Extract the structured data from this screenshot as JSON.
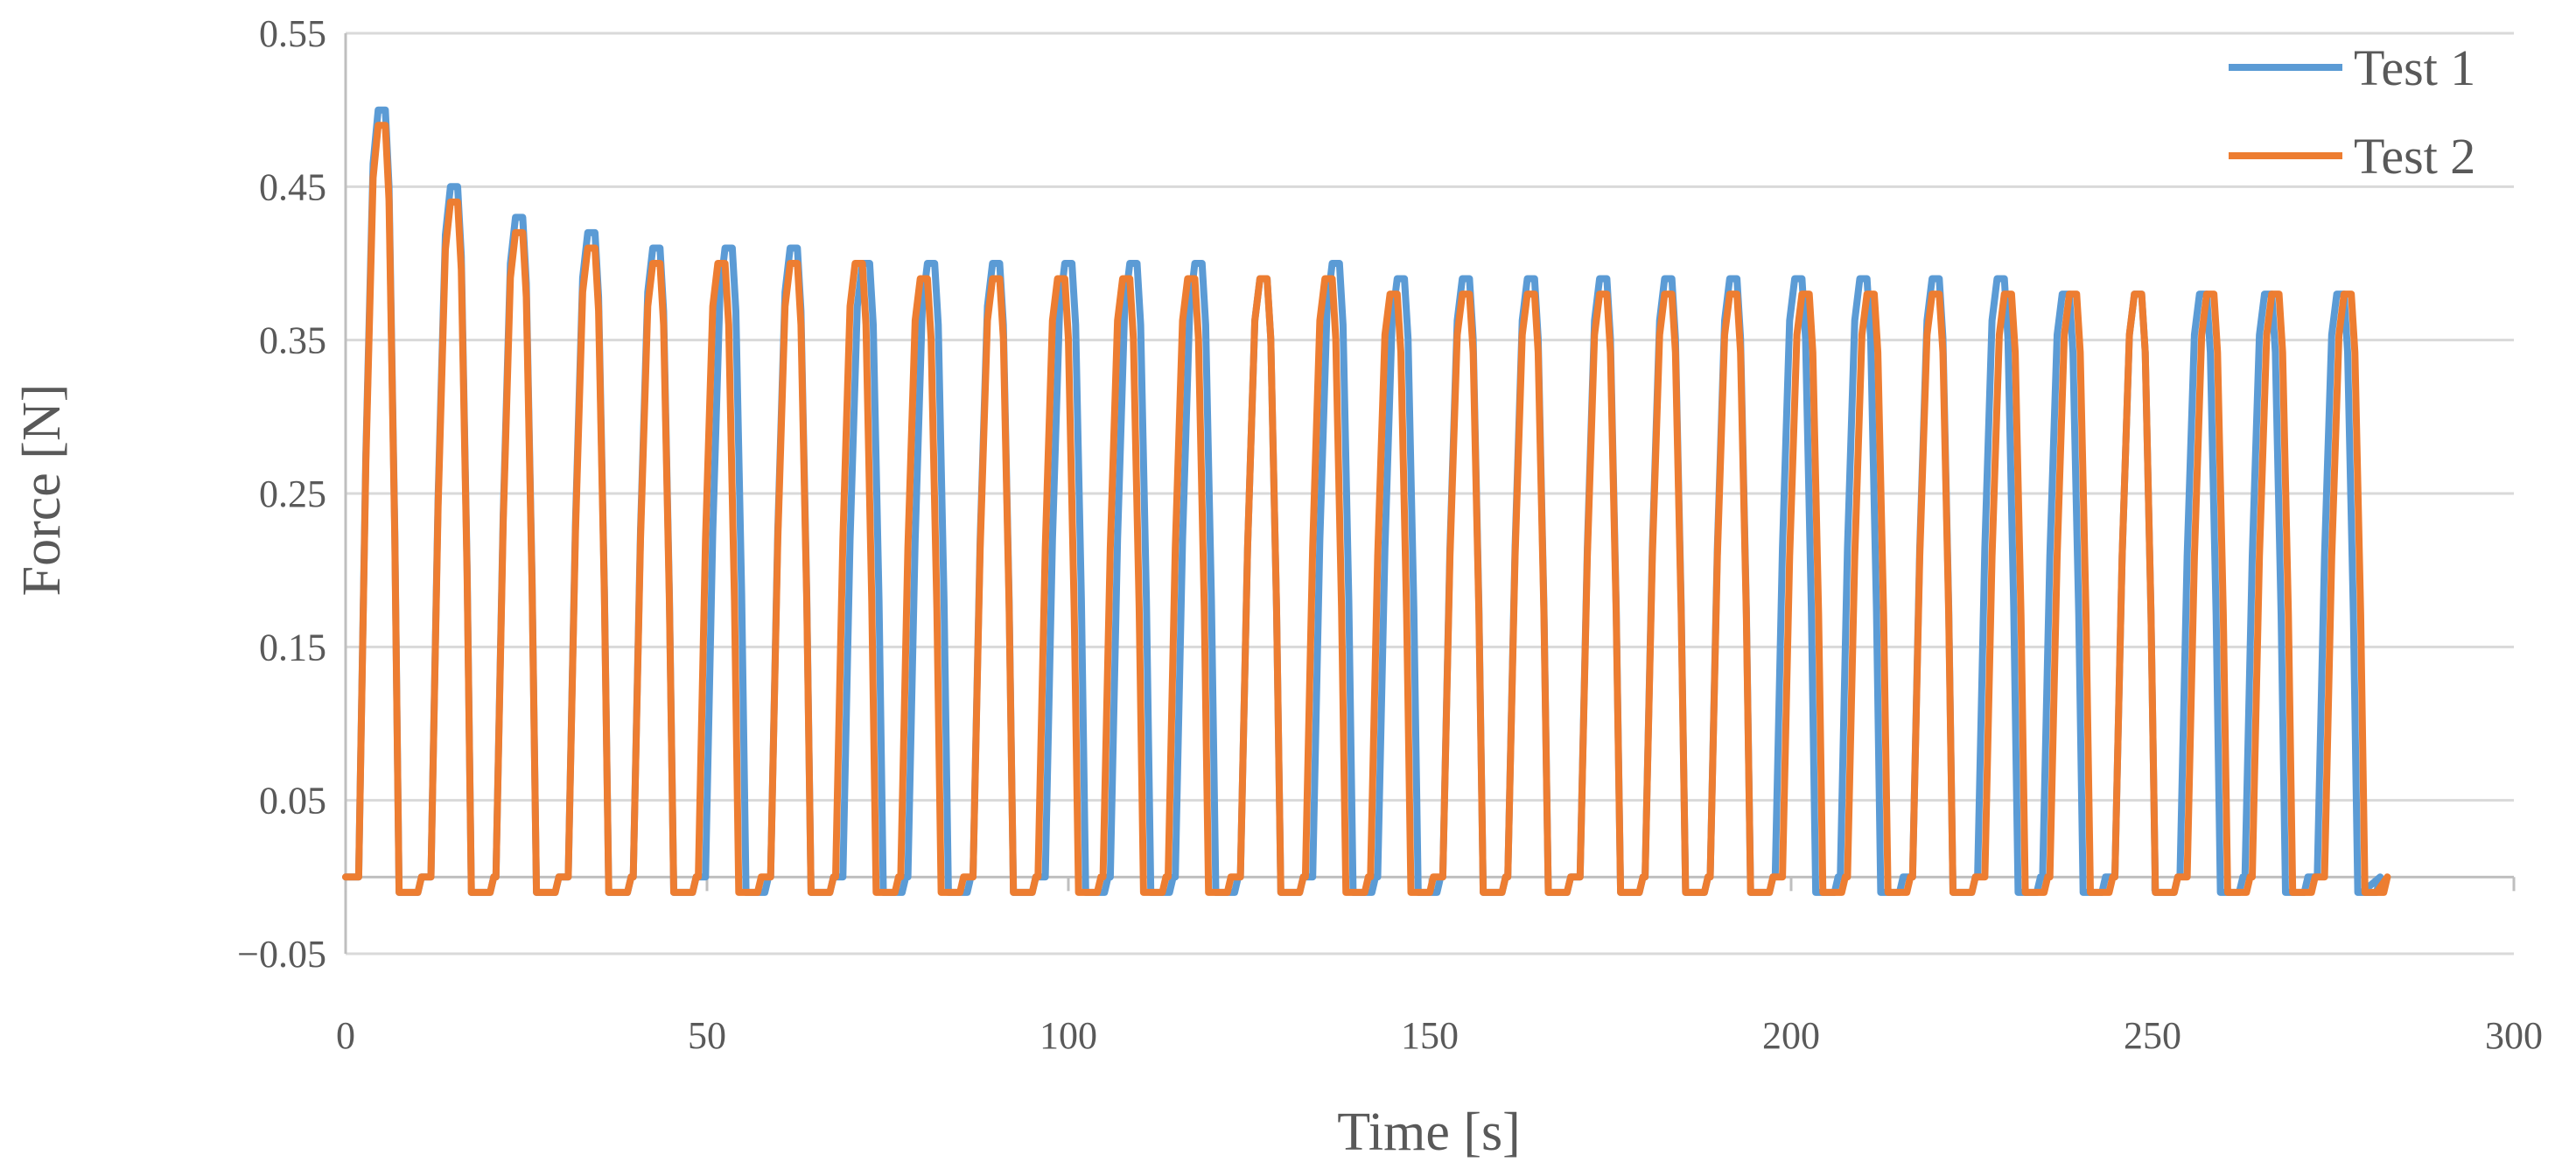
{
  "chart_data": {
    "type": "line",
    "title": "",
    "xlabel": "Time [s]",
    "ylabel": "Force [N]",
    "xlim": [
      0,
      300
    ],
    "ylim": [
      -0.05,
      0.55
    ],
    "x_ticks": [
      0,
      50,
      100,
      150,
      200,
      250,
      300
    ],
    "x_tick_labels": [
      "0",
      "50",
      "100",
      "150",
      "200",
      "250",
      "300"
    ],
    "y_ticks": [
      0.55,
      0.45,
      0.35,
      0.25,
      0.15,
      0.05,
      -0.05
    ],
    "y_tick_labels": [
      "0.55",
      "0.45",
      "0.35",
      "0.25",
      "0.15",
      "0.05",
      "−0.05"
    ],
    "grid": true,
    "legend_position": "top-right",
    "baseline_y": 0,
    "series": [
      {
        "name": "Test 1",
        "color": "#5b9bd5",
        "peak_times": [
          5,
          15,
          24,
          34,
          43,
          53,
          62,
          72,
          81,
          90,
          100,
          109,
          118,
          127,
          137,
          146,
          155,
          164,
          174,
          183,
          192,
          201,
          210,
          220,
          229,
          238,
          248,
          257,
          266,
          276
        ],
        "peak_values": [
          0.5,
          0.45,
          0.43,
          0.42,
          0.41,
          0.41,
          0.41,
          0.4,
          0.4,
          0.4,
          0.4,
          0.4,
          0.4,
          0.39,
          0.4,
          0.39,
          0.39,
          0.39,
          0.39,
          0.39,
          0.39,
          0.39,
          0.39,
          0.39,
          0.39,
          0.38,
          0.38,
          0.38,
          0.38,
          0.38
        ],
        "min_value": -0.01,
        "end_time": 279
      },
      {
        "name": "Test 2",
        "color": "#ed7d31",
        "peak_times": [
          5,
          15,
          24,
          34,
          43,
          52,
          62,
          71,
          80,
          90,
          99,
          108,
          117,
          127,
          136,
          145,
          155,
          164,
          174,
          183,
          192,
          202,
          211,
          220,
          230,
          239,
          248,
          258,
          267,
          277
        ],
        "peak_values": [
          0.49,
          0.44,
          0.42,
          0.41,
          0.4,
          0.4,
          0.4,
          0.4,
          0.39,
          0.39,
          0.39,
          0.39,
          0.39,
          0.39,
          0.39,
          0.38,
          0.38,
          0.38,
          0.38,
          0.38,
          0.38,
          0.38,
          0.38,
          0.38,
          0.38,
          0.38,
          0.38,
          0.38,
          0.38,
          0.38
        ],
        "min_value": -0.01,
        "end_time": 281
      }
    ]
  }
}
